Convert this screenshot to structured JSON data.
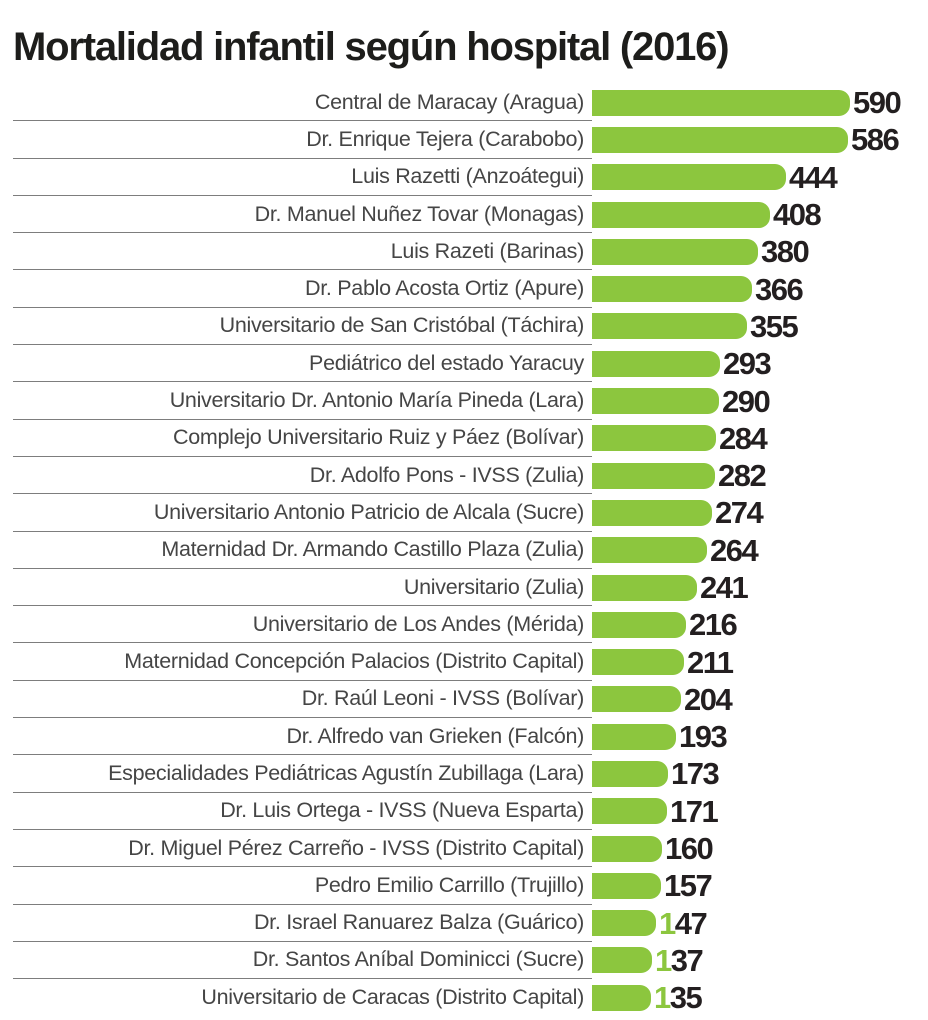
{
  "colors": {
    "bar_green": "#8CC63E",
    "value_text": "#231F20",
    "label_text": "#454545",
    "separator": "#7d7d7d",
    "title_text": "#1d1d1b",
    "background": "#ffffff"
  },
  "chart_data": {
    "type": "bar",
    "orientation": "horizontal",
    "title": "Mortalidad infantil según hospital (2016)",
    "xlabel": "",
    "ylabel": "",
    "xlim": [
      0,
      590
    ],
    "grid": false,
    "legend": "none",
    "value_labels": "end-of-bar",
    "categories": [
      "Central de Maracay (Aragua)",
      "Dr. Enrique Tejera (Carabobo)",
      "Luis Razetti (Anzoátegui)",
      "Dr. Manuel Nuñez Tovar (Monagas)",
      "Luis Razeti (Barinas)",
      "Dr. Pablo Acosta Ortiz (Apure)",
      "Universitario de San Cristóbal (Táchira)",
      "Pediátrico del estado Yaracuy",
      "Universitario Dr. Antonio María Pineda (Lara)",
      "Complejo Universitario Ruiz y Páez (Bolívar)",
      "Dr. Adolfo Pons - IVSS (Zulia)",
      "Universitario Antonio Patricio de Alcala (Sucre)",
      "Maternidad Dr. Armando Castillo Plaza (Zulia)",
      "Universitario (Zulia)",
      "Universitario de Los Andes (Mérida)",
      "Maternidad Concepción Palacios (Distrito Capital)",
      "Dr. Raúl Leoni - IVSS (Bolívar)",
      "Dr. Alfredo van Grieken (Falcón)",
      "Especialidades Pediátricas Agustín Zubillaga (Lara)",
      "Dr. Luis Ortega - IVSS (Nueva Esparta)",
      "Dr. Miguel Pérez Carreño - IVSS (Distrito Capital)",
      "Pedro Emilio Carrillo (Trujillo)",
      "Dr. Israel Ranuarez Balza (Guárico)",
      "Dr. Santos Aníbal Dominicci (Sucre)",
      "Universitario de Caracas (Distrito Capital)"
    ],
    "values": [
      590,
      586,
      444,
      408,
      380,
      366,
      355,
      293,
      290,
      284,
      282,
      274,
      264,
      241,
      216,
      211,
      204,
      193,
      173,
      171,
      160,
      157,
      147,
      137,
      135
    ],
    "green_leading_digit_row_indices": [
      22,
      23,
      24
    ]
  }
}
